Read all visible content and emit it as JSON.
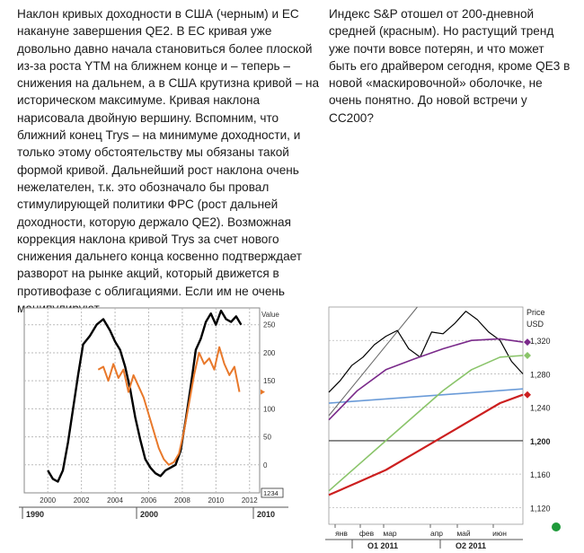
{
  "left_text": "Наклон кривых доходности в США (черным) и ЕС накануне завершения QE2. В ЕС кривая уже довольно давно начала становиться более плоской из-за роста YTM на ближнем конце и – теперь – снижения на дальнем, а в США крутизна кривой – на историческом максимуме. Кривая наклона нарисовала двойную вершину. Вспомним, что ближний конец Trys – на минимуме доходности, и только этому обстоятельству мы обязаны такой формой кривой. Дальнейший рост наклона очень нежелателен, т.к. это обозначало бы провал стимулирующей политики ФРС (рост дальней доходности, которую держало QE2). Возможная коррекция наклона кривой Trys за счет нового снижения дальнего конца косвенно подтверждает разворот на рынке акций, который движется в противофазе с облигациями. Если им не очень манипулируют.",
  "right_text": "Индекс S&P отошел от 200-дневной средней (красным). Но растущий тренд уже почти вовсе потерян, и что может быть его драйвером сегодня, кроме QE3 в новой «маскировочной» оболочке, не очень понятно. До новой встречи у СС200?",
  "chart_data": [
    {
      "type": "line",
      "ylabel": "Value",
      "ylim": [
        -50,
        280
      ],
      "yticks": [
        250,
        200,
        150,
        100,
        50,
        0
      ],
      "xticks": [
        "2000",
        "2002",
        "2004",
        "2006",
        "2008",
        "2010",
        "2012"
      ],
      "periods": [
        "1990",
        "2000",
        "2010"
      ],
      "last_value_label": "1234",
      "series": [
        {
          "color": "#000000",
          "x": [
            2000.0,
            2000.3,
            2000.6,
            2000.9,
            2001.2,
            2001.5,
            2001.8,
            2002.1,
            2002.5,
            2002.9,
            2003.3,
            2003.7,
            2004.0,
            2004.3,
            2004.6,
            2004.9,
            2005.2,
            2005.5,
            2005.8,
            2006.1,
            2006.4,
            2006.7,
            2007.0,
            2007.3,
            2007.6,
            2007.9,
            2008.2,
            2008.5,
            2008.8,
            2009.1,
            2009.4,
            2009.7,
            2010.0,
            2010.3,
            2010.6,
            2010.9,
            2011.2,
            2011.5
          ],
          "values": [
            -10,
            -25,
            -30,
            -10,
            40,
            100,
            160,
            215,
            230,
            250,
            260,
            240,
            220,
            205,
            175,
            135,
            85,
            45,
            10,
            -5,
            -15,
            -20,
            -10,
            -5,
            0,
            25,
            80,
            140,
            205,
            225,
            255,
            270,
            250,
            275,
            260,
            255,
            265,
            250
          ]
        },
        {
          "color": "#e8782a",
          "x": [
            2003.0,
            2003.3,
            2003.6,
            2003.9,
            2004.2,
            2004.5,
            2004.8,
            2005.1,
            2005.4,
            2005.7,
            2006.0,
            2006.3,
            2006.6,
            2006.9,
            2007.2,
            2007.5,
            2007.8,
            2008.1,
            2008.4,
            2008.7,
            2009.0,
            2009.3,
            2009.6,
            2009.9,
            2010.2,
            2010.5,
            2010.8,
            2011.1,
            2011.4
          ],
          "values": [
            170,
            175,
            150,
            180,
            155,
            170,
            130,
            160,
            140,
            120,
            90,
            60,
            30,
            10,
            0,
            5,
            20,
            60,
            110,
            160,
            200,
            180,
            190,
            170,
            210,
            180,
            160,
            175,
            130
          ]
        }
      ]
    },
    {
      "type": "line",
      "ylabel": "Price USD",
      "ylim": [
        1100,
        1360
      ],
      "yticks": [
        "1,320",
        "1,280",
        "1,240",
        "1,200",
        "1,160",
        "1,120"
      ],
      "xticks": [
        "янв",
        "фев",
        "мар",
        "апр",
        "май",
        "июн"
      ],
      "periods": [
        "Q1 2011",
        "Q2 2011"
      ],
      "series": [
        {
          "color": "#000000",
          "x": [
            0,
            8,
            16,
            24,
            32,
            40,
            48,
            56,
            64,
            72,
            80,
            88,
            96,
            104,
            112,
            120,
            128,
            136
          ],
          "values": [
            1258,
            1272,
            1290,
            1300,
            1315,
            1325,
            1332,
            1310,
            1300,
            1330,
            1328,
            1340,
            1355,
            1345,
            1330,
            1320,
            1295,
            1280
          ]
        },
        {
          "color": "#7a2a8a",
          "x": [
            0,
            20,
            40,
            60,
            80,
            100,
            120,
            136
          ],
          "values": [
            1225,
            1260,
            1285,
            1298,
            1310,
            1320,
            1322,
            1318
          ]
        },
        {
          "color": "#8ac46a",
          "x": [
            0,
            20,
            40,
            60,
            80,
            100,
            120,
            136
          ],
          "values": [
            1140,
            1170,
            1200,
            1230,
            1260,
            1285,
            1300,
            1302
          ]
        },
        {
          "color": "#cc1f1f",
          "x": [
            0,
            20,
            40,
            60,
            80,
            100,
            120,
            136
          ],
          "values": [
            1135,
            1150,
            1165,
            1185,
            1205,
            1225,
            1245,
            1255
          ]
        }
      ]
    }
  ]
}
